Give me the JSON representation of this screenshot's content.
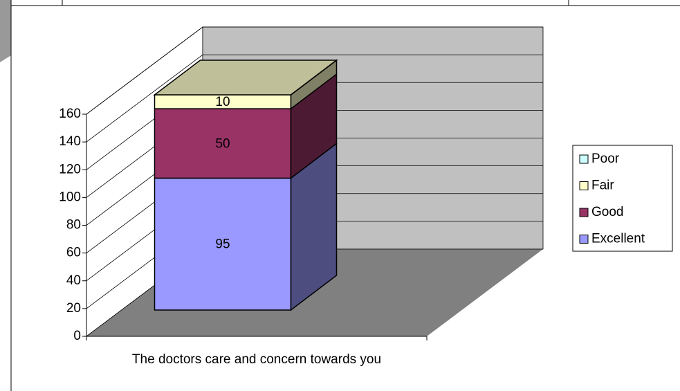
{
  "chart_data": {
    "type": "bar3d_stacked",
    "categories": [
      "The doctors care and concern towards you"
    ],
    "series": [
      {
        "name": "Excellent",
        "color": "#9999ff",
        "values": [
          95
        ]
      },
      {
        "name": "Good",
        "color": "#993366",
        "values": [
          50
        ]
      },
      {
        "name": "Fair",
        "color": "#ffffcc",
        "values": [
          10
        ]
      },
      {
        "name": "Poor",
        "color": "#ccffff",
        "values": [
          0
        ]
      }
    ],
    "ylim": [
      0,
      160
    ],
    "yticks": [
      0,
      20,
      40,
      60,
      80,
      100,
      120,
      140,
      160
    ],
    "grid": true,
    "legend": "right",
    "stacked": true
  }
}
